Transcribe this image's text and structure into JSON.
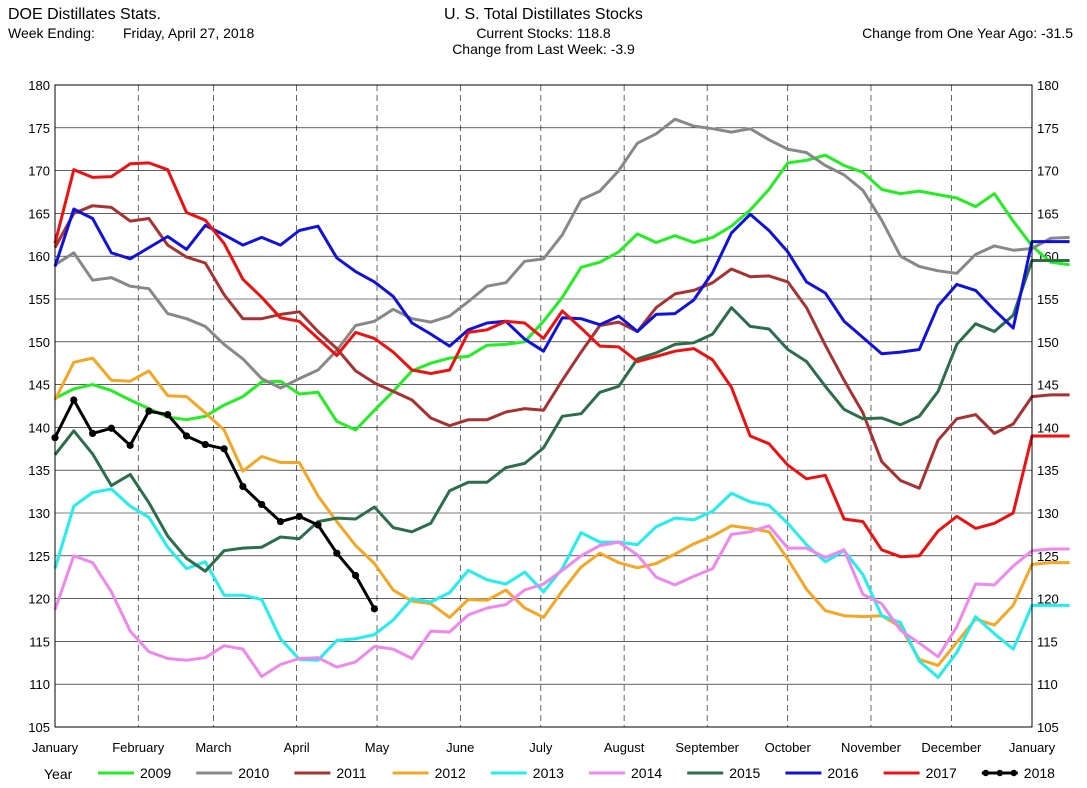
{
  "header": {
    "left_title": "DOE Distillates Stats.",
    "week_ending_label": "Week Ending:",
    "week_ending_value": "Friday, April 27, 2018",
    "center_title": "U. S. Total Distillates Stocks",
    "current_stocks_label": "Current Stocks:",
    "current_stocks_value": "118.8",
    "change_week_label": "Change from Last Week:",
    "change_week_value": "-3.9",
    "change_year_label": "Change from One Year Ago:",
    "change_year_value": "-31.5"
  },
  "legend": {
    "title": "Year"
  },
  "chart_data": {
    "type": "line",
    "title": "U. S. Total Distillates Stocks",
    "xlabel": "",
    "ylabel": "",
    "x_unit": "week of year",
    "xlim": [
      1,
      53
    ],
    "ylim": [
      105,
      180
    ],
    "y_ticks": [
      105,
      110,
      115,
      120,
      125,
      130,
      135,
      140,
      145,
      150,
      155,
      160,
      165,
      170,
      175,
      180
    ],
    "y_tick_labels": [
      "105",
      "110",
      "115",
      "120",
      "125",
      "130",
      "135",
      "140",
      "145",
      "150",
      "155",
      "160",
      "165",
      "170",
      "175",
      "180"
    ],
    "x_ticks": [
      1,
      5.43,
      9.43,
      13.86,
      18.14,
      22.57,
      26.86,
      31.29,
      35.71,
      40,
      44.43,
      48.71,
      53
    ],
    "x_tick_labels": [
      "January",
      "February",
      "March",
      "April",
      "May",
      "June",
      "July",
      "August",
      "September",
      "October",
      "November",
      "December",
      "January"
    ],
    "grid": true,
    "legend_position": "bottom",
    "series": [
      {
        "name": "2009",
        "color": "#22ee22",
        "markers": false,
        "values": [
          143.4,
          144.5,
          145.0,
          144.3,
          143.2,
          142.2,
          141.2,
          140.9,
          141.3,
          142.6,
          143.6,
          145.3,
          145.4,
          143.9,
          144.1,
          140.7,
          139.7,
          142.0,
          144.2,
          146.6,
          147.5,
          148.1,
          148.3,
          149.6,
          149.7,
          150.0,
          152.4,
          155.2,
          158.7,
          159.3,
          160.5,
          162.6,
          161.6,
          162.4,
          161.6,
          162.2,
          163.5,
          165.4,
          167.8,
          170.9,
          171.2,
          171.8,
          170.6,
          169.8,
          167.8,
          167.3,
          167.6,
          167.2,
          166.8,
          165.8,
          167.3,
          164.1,
          161.2,
          159.3,
          159.0
        ]
      },
      {
        "name": "2010",
        "color": "#888888",
        "markers": false,
        "values": [
          159.0,
          160.4,
          157.2,
          157.5,
          156.5,
          156.2,
          153.3,
          152.7,
          151.8,
          149.7,
          148.0,
          145.7,
          144.6,
          145.7,
          146.7,
          149.0,
          151.9,
          152.4,
          153.8,
          152.7,
          152.3,
          153.0,
          154.7,
          156.5,
          156.9,
          159.4,
          159.7,
          162.5,
          166.6,
          167.6,
          170.0,
          173.2,
          174.3,
          176.0,
          175.2,
          174.9,
          174.5,
          174.9,
          173.6,
          172.5,
          172.1,
          170.6,
          169.5,
          167.7,
          164.2,
          160.0,
          158.8,
          158.3,
          158.0,
          160.2,
          161.2,
          160.7,
          160.9,
          162.1,
          162.2
        ]
      },
      {
        "name": "2011",
        "color": "#a83232",
        "markers": false,
        "values": [
          161.0,
          165.0,
          165.9,
          165.7,
          164.1,
          164.4,
          161.3,
          159.9,
          159.2,
          155.5,
          152.7,
          152.7,
          153.2,
          153.5,
          151.2,
          149.2,
          146.6,
          145.2,
          144.2,
          143.2,
          141.1,
          140.2,
          140.9,
          140.9,
          141.8,
          142.2,
          142.0,
          145.5,
          148.8,
          151.9,
          152.3,
          151.2,
          154.0,
          155.6,
          156.0,
          156.9,
          158.5,
          157.6,
          157.7,
          157.0,
          154.0,
          149.6,
          145.5,
          141.7,
          136.0,
          133.8,
          132.9,
          138.5,
          141.0,
          141.5,
          139.3,
          140.4,
          143.6,
          143.8,
          143.8
        ]
      },
      {
        "name": "2012",
        "color": "#f5a623",
        "markers": false,
        "values": [
          143.2,
          147.6,
          148.1,
          145.5,
          145.4,
          146.6,
          143.7,
          143.6,
          141.7,
          139.7,
          134.9,
          136.6,
          135.9,
          135.9,
          132.0,
          129.0,
          126.2,
          124.1,
          121.0,
          119.7,
          119.4,
          117.8,
          119.9,
          119.8,
          121.0,
          118.9,
          117.8,
          120.9,
          123.7,
          125.3,
          124.2,
          123.6,
          124.1,
          125.2,
          126.4,
          127.3,
          128.5,
          128.2,
          127.8,
          124.6,
          121.1,
          118.6,
          118.0,
          117.9,
          118.0,
          116.7,
          112.9,
          112.2,
          114.9,
          117.6,
          116.9,
          119.2,
          124.0,
          124.2,
          124.2
        ]
      },
      {
        "name": "2013",
        "color": "#22eeee",
        "markers": false,
        "values": [
          123.5,
          130.8,
          132.4,
          132.8,
          130.8,
          129.5,
          126.0,
          123.5,
          124.3,
          120.4,
          120.4,
          119.9,
          115.3,
          112.9,
          112.8,
          115.1,
          115.3,
          115.8,
          117.5,
          120.0,
          119.6,
          120.7,
          123.3,
          122.2,
          121.7,
          123.1,
          120.8,
          123.5,
          127.7,
          126.6,
          126.6,
          126.3,
          128.4,
          129.4,
          129.2,
          130.2,
          132.3,
          131.3,
          130.9,
          128.8,
          126.3,
          124.3,
          125.6,
          122.8,
          118.0,
          117.2,
          112.7,
          110.8,
          113.7,
          117.9,
          115.9,
          114.1,
          119.2,
          119.2,
          119.2
        ]
      },
      {
        "name": "2014",
        "color": "#ee88ee",
        "markers": false,
        "values": [
          118.7,
          125.0,
          124.2,
          120.8,
          116.2,
          113.8,
          113.0,
          112.8,
          113.1,
          114.5,
          114.1,
          110.9,
          112.3,
          113.0,
          113.1,
          112.0,
          112.6,
          114.4,
          114.1,
          113.0,
          116.2,
          116.1,
          118.1,
          118.9,
          119.3,
          121.0,
          121.7,
          123.3,
          125.0,
          126.2,
          126.6,
          125.1,
          122.5,
          121.6,
          122.6,
          123.5,
          127.5,
          127.8,
          128.5,
          125.9,
          125.9,
          124.8,
          125.7,
          120.5,
          119.4,
          116.3,
          114.8,
          113.2,
          116.7,
          121.7,
          121.6,
          123.8,
          125.6,
          125.8,
          125.8
        ]
      },
      {
        "name": "2015",
        "color": "#2d6e4a",
        "markers": false,
        "values": [
          136.8,
          139.6,
          136.9,
          133.2,
          134.5,
          131.2,
          127.3,
          124.7,
          123.2,
          125.6,
          125.9,
          126.0,
          127.2,
          127.0,
          129.0,
          129.4,
          129.3,
          130.7,
          128.3,
          127.8,
          128.8,
          132.6,
          133.6,
          133.6,
          135.3,
          135.8,
          137.6,
          141.3,
          141.6,
          144.1,
          144.8,
          148.0,
          148.7,
          149.7,
          149.9,
          150.9,
          154.0,
          151.8,
          151.5,
          149.1,
          147.7,
          144.8,
          142.1,
          141.0,
          141.1,
          140.3,
          141.3,
          144.2,
          149.7,
          152.1,
          151.2,
          153.1,
          159.5,
          159.5,
          159.5
        ]
      },
      {
        "name": "2016",
        "color": "#1111dd",
        "markers": false,
        "values": [
          158.8,
          165.5,
          164.4,
          160.4,
          159.7,
          161.0,
          162.3,
          160.8,
          163.6,
          162.5,
          161.3,
          162.2,
          161.3,
          163.0,
          163.5,
          159.8,
          158.2,
          157.0,
          155.3,
          152.2,
          150.9,
          149.5,
          151.4,
          152.2,
          152.4,
          150.3,
          148.9,
          152.8,
          152.7,
          152.0,
          153.0,
          151.2,
          153.2,
          153.3,
          154.9,
          158.1,
          162.7,
          164.9,
          163.0,
          160.5,
          157.0,
          155.7,
          152.4,
          150.5,
          148.6,
          148.8,
          149.1,
          154.2,
          156.7,
          156.0,
          153.7,
          151.6,
          161.7,
          161.7,
          161.7
        ]
      },
      {
        "name": "2017",
        "color": "#ee1111",
        "markers": false,
        "values": [
          161.5,
          170.1,
          169.2,
          169.3,
          170.8,
          170.9,
          170.1,
          165.1,
          164.2,
          161.5,
          157.3,
          155.2,
          152.8,
          152.4,
          150.4,
          148.4,
          151.1,
          150.4,
          148.8,
          146.7,
          146.3,
          146.7,
          151.1,
          151.4,
          152.4,
          152.2,
          150.4,
          153.6,
          151.6,
          149.5,
          149.4,
          147.7,
          148.3,
          148.9,
          149.2,
          147.9,
          144.7,
          139.0,
          138.1,
          135.6,
          134.0,
          134.4,
          129.3,
          129.0,
          125.7,
          124.9,
          125.0,
          127.9,
          129.6,
          128.2,
          128.8,
          130.0,
          139.0,
          139.0,
          139.0
        ]
      },
      {
        "name": "2018",
        "color": "#000000",
        "markers": true,
        "values": [
          138.8,
          143.2,
          139.3,
          139.9,
          137.9,
          141.9,
          141.5,
          139.0,
          138.0,
          137.5,
          133.1,
          131.0,
          129.0,
          129.6,
          128.6,
          125.3,
          122.7,
          118.8
        ]
      }
    ]
  }
}
